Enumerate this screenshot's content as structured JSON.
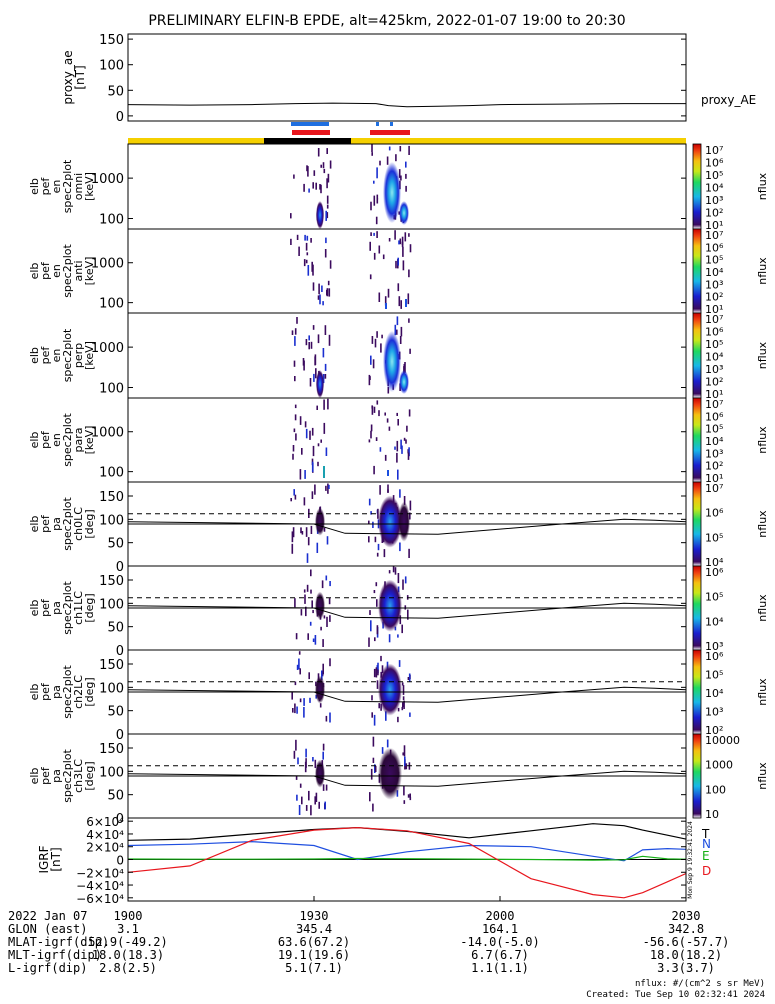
{
  "title": "PRELIMINARY ELFIN-B EPDE, alt=425km, 2022-01-07 19:00 to 20:30",
  "colors": {
    "orbit_bar": "#f5d000",
    "orbit_bar_dark": "#000000",
    "science_marker_blue": "#1f6fe0",
    "science_marker_red": "#e8161d",
    "curve_T": "#000000",
    "curve_N": "#1f4fe0",
    "curve_E": "#16b016",
    "curve_D": "#e8161d"
  },
  "chart_data": {
    "type": "heatmap",
    "time_axis": {
      "start": "19:00",
      "end": "20:30",
      "tick_labels": [
        "1900",
        "1930",
        "2000",
        "2030"
      ],
      "tick_minutes": [
        0,
        30,
        60,
        90
      ],
      "range_minutes": [
        0,
        90
      ]
    },
    "panels": [
      {
        "id": "proxy_ae",
        "type": "line",
        "ylabel": [
          "proxy_ae",
          "[nT]"
        ],
        "yticks": [
          "150",
          "100",
          "50",
          "0"
        ],
        "ytick_values": [
          150,
          100,
          50,
          0
        ],
        "ylim": [
          -10,
          160
        ],
        "legend": "proxy_AE",
        "x_minutes": [
          0,
          10,
          20,
          27,
          33,
          40,
          42,
          45,
          50,
          55,
          60,
          70,
          80,
          90
        ],
        "y": [
          22,
          21,
          22,
          24,
          25,
          24,
          20,
          18,
          19,
          20,
          22,
          23,
          24,
          24
        ]
      },
      {
        "id": "pef_en_omni",
        "type": "spectrogram",
        "ylabel": [
          "elb",
          "pef",
          "en",
          "spec2plot",
          "omni",
          "[keV]"
        ],
        "yticks": [
          "1000",
          "100"
        ],
        "ytick_values": [
          1000,
          100
        ],
        "ylim": [
          55,
          7000
        ],
        "cbar_label": "nflux",
        "cbar_ticks": [
          "10⁷",
          "10⁶",
          "10⁵",
          "10⁴",
          "10³",
          "10²",
          "10¹"
        ],
        "cbar_values": [
          7,
          6,
          5,
          4,
          3,
          2,
          1
        ]
      },
      {
        "id": "pef_en_anti",
        "type": "spectrogram",
        "ylabel": [
          "elb",
          "pef",
          "en",
          "spec2plot",
          "anti",
          "[keV]"
        ],
        "yticks": [
          "1000",
          "100"
        ],
        "ytick_values": [
          1000,
          100
        ],
        "ylim": [
          55,
          7000
        ],
        "cbar_label": "nflux",
        "cbar_ticks": [
          "10⁷",
          "10⁶",
          "10⁵",
          "10⁴",
          "10³",
          "10²",
          "10¹"
        ],
        "cbar_values": [
          7,
          6,
          5,
          4,
          3,
          2,
          1
        ]
      },
      {
        "id": "pef_en_perp",
        "type": "spectrogram",
        "ylabel": [
          "elb",
          "pef",
          "en",
          "spec2plot",
          "perp",
          "[keV]"
        ],
        "yticks": [
          "1000",
          "100"
        ],
        "ytick_values": [
          1000,
          100
        ],
        "ylim": [
          55,
          7000
        ],
        "cbar_label": "nflux",
        "cbar_ticks": [
          "10⁷",
          "10⁶",
          "10⁵",
          "10⁴",
          "10³",
          "10²",
          "10¹"
        ],
        "cbar_values": [
          7,
          6,
          5,
          4,
          3,
          2,
          1
        ]
      },
      {
        "id": "pef_en_para",
        "type": "spectrogram",
        "ylabel": [
          "elb",
          "pef",
          "en",
          "spec2plot",
          "para",
          "[keV]"
        ],
        "yticks": [
          "1000",
          "100"
        ],
        "ytick_values": [
          1000,
          100
        ],
        "ylim": [
          55,
          7000
        ],
        "cbar_label": "nflux",
        "cbar_ticks": [
          "10⁷",
          "10⁶",
          "10⁵",
          "10⁴",
          "10³",
          "10²",
          "10¹"
        ],
        "cbar_values": [
          7,
          6,
          5,
          4,
          3,
          2,
          1
        ]
      },
      {
        "id": "pef_pa_ch0",
        "type": "spectrogram",
        "ylabel": [
          "elb",
          "pef",
          "pa",
          "spec2plot",
          "ch0LC",
          "[deg]"
        ],
        "yticks": [
          "150",
          "100",
          "50",
          "0"
        ],
        "ytick_values": [
          150,
          100,
          50,
          0
        ],
        "ylim": [
          0,
          180
        ],
        "cbar_label": "nflux",
        "cbar_ticks": [
          "10⁷",
          "10⁶",
          "10⁵",
          "10⁴"
        ],
        "cbar_values": [
          7,
          6,
          5,
          4
        ]
      },
      {
        "id": "pef_pa_ch1",
        "type": "spectrogram",
        "ylabel": [
          "elb",
          "pef",
          "pa",
          "spec2plot",
          "ch1LC",
          "[deg]"
        ],
        "yticks": [
          "150",
          "100",
          "50",
          "0"
        ],
        "ytick_values": [
          150,
          100,
          50,
          0
        ],
        "ylim": [
          0,
          180
        ],
        "cbar_label": "nflux",
        "cbar_ticks": [
          "10⁶",
          "10⁵",
          "10⁴",
          "10³"
        ],
        "cbar_values": [
          6,
          5,
          4,
          3
        ]
      },
      {
        "id": "pef_pa_ch2",
        "type": "spectrogram",
        "ylabel": [
          "elb",
          "pef",
          "pa",
          "spec2plot",
          "ch2LC",
          "[deg]"
        ],
        "yticks": [
          "150",
          "100",
          "50",
          "0"
        ],
        "ytick_values": [
          150,
          100,
          50,
          0
        ],
        "ylim": [
          0,
          180
        ],
        "cbar_label": "nflux",
        "cbar_ticks": [
          "10⁶",
          "10⁵",
          "10⁴",
          "10³",
          "10²"
        ],
        "cbar_values": [
          6,
          5,
          4,
          3,
          2
        ]
      },
      {
        "id": "pef_pa_ch3",
        "type": "spectrogram",
        "ylabel": [
          "elb",
          "pef",
          "pa",
          "spec2plot",
          "ch3LC",
          "[deg]"
        ],
        "yticks": [
          "150",
          "100",
          "50",
          "0"
        ],
        "ytick_values": [
          150,
          100,
          50,
          0
        ],
        "ylim": [
          0,
          180
        ],
        "cbar_label": "nflux",
        "cbar_ticks": [
          "10000",
          "1000",
          "100",
          "10"
        ],
        "cbar_values": [
          4,
          3,
          2,
          1
        ]
      },
      {
        "id": "igrf",
        "type": "line",
        "ylabel": [
          "IGRF",
          "[nT]"
        ],
        "yticks": [
          "6×10⁴",
          "4×10⁴",
          "2×10⁴",
          "0",
          "−2×10⁴",
          "−4×10⁴",
          "−6×10⁴"
        ],
        "ytick_values": [
          60000,
          40000,
          20000,
          0,
          -20000,
          -40000,
          -60000
        ],
        "ylim": [
          -65000,
          65000
        ],
        "legend": [
          "T",
          "N",
          "E",
          "D"
        ],
        "side_note": "Mon Sep 9 19:32:41 2024",
        "x_minutes": [
          0,
          10,
          20,
          30,
          37,
          45,
          55,
          65,
          75,
          80,
          83,
          87,
          90
        ],
        "series": [
          {
            "name": "T",
            "values": [
              30000,
              32000,
              40000,
              47000,
              50000,
              44000,
              34000,
              45000,
              56000,
              53000,
              46000,
              38000,
              32000
            ]
          },
          {
            "name": "N",
            "values": [
              22000,
              24000,
              28000,
              22000,
              0,
              12000,
              22000,
              20000,
              5000,
              -2000,
              15000,
              17000,
              16000
            ]
          },
          {
            "name": "E",
            "values": [
              800,
              500,
              400,
              800,
              1500,
              1200,
              700,
              0,
              -1000,
              -500,
              5000,
              1000,
              500
            ]
          },
          {
            "name": "D",
            "values": [
              -20000,
              -10000,
              30000,
              46000,
              50000,
              45000,
              25000,
              -30000,
              -55000,
              -60000,
              -52000,
              -35000,
              -22000
            ]
          }
        ]
      }
    ]
  },
  "footer": {
    "rows": [
      {
        "label": "2022 Jan 07",
        "values": [
          "1900",
          "1930",
          "2000",
          "2030"
        ]
      },
      {
        "label": "GLON (east)",
        "values": [
          "3.1",
          "345.4",
          "164.1",
          "342.8"
        ]
      },
      {
        "label": "MLAT-igrf(dip)",
        "values": [
          "52.9(-49.2)",
          "63.6(67.2)",
          "-14.0(-5.0)",
          "-56.6(-57.7)"
        ]
      },
      {
        "label": "MLT-igrf(dip)",
        "values": [
          "18.0(18.3)",
          "19.1(19.6)",
          "6.7(6.7)",
          "18.0(18.2)"
        ]
      },
      {
        "label": "L-igrf(dip)",
        "values": [
          "2.8(2.5)",
          "5.1(7.1)",
          "1.1(1.1)",
          "3.3(3.7)"
        ]
      }
    ],
    "units_note": "nflux: #/(cm^2 s sr MeV)",
    "created": "Created: Tue Sep 10 02:32:41 2024"
  }
}
